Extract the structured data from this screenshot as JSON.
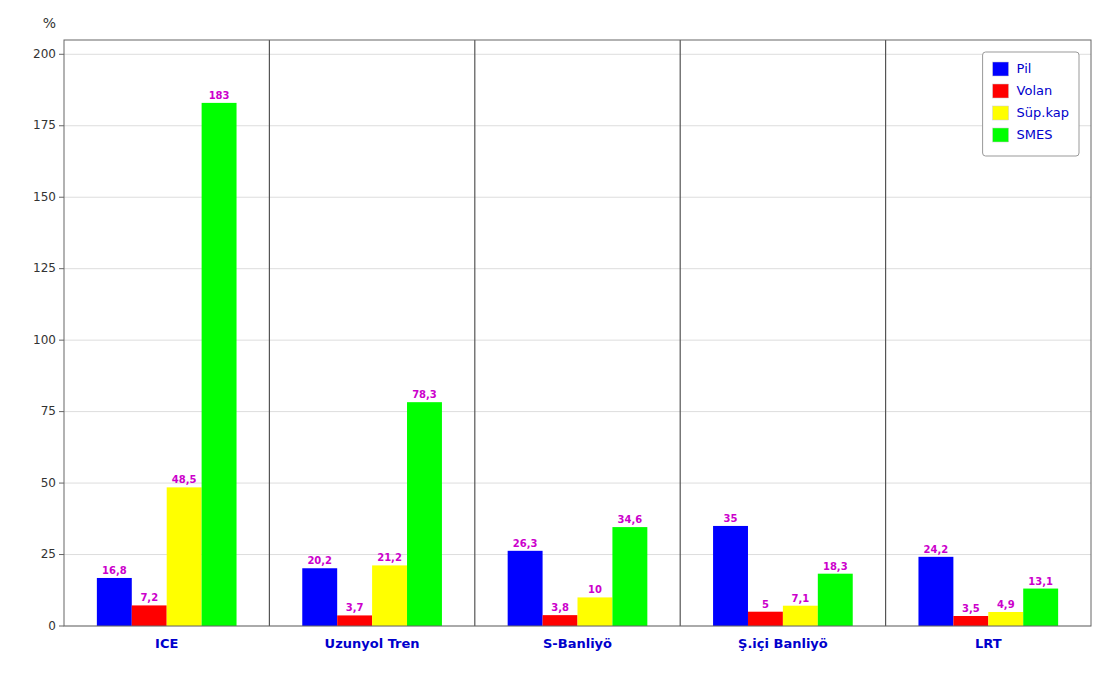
{
  "chart_data": {
    "type": "bar",
    "categories": [
      "ICE",
      "Uzunyol Tren",
      "S-Banliyö",
      "Ş.içi Banliyö",
      "LRT"
    ],
    "series": [
      {
        "name": "Pil",
        "color": "#0000FF",
        "values": [
          16.8,
          20.2,
          26.3,
          35,
          24.2
        ],
        "value_labels": [
          "16,8",
          "20,2",
          "26,3",
          "35",
          "24,2"
        ]
      },
      {
        "name": "Volan",
        "color": "#FF0000",
        "values": [
          7.2,
          3.7,
          3.8,
          5,
          3.5
        ],
        "value_labels": [
          "7,2",
          "3,7",
          "3,8",
          "5",
          "3,5"
        ]
      },
      {
        "name": "Süp.kap",
        "color": "#FFFF00",
        "values": [
          48.5,
          21.2,
          10,
          7.1,
          4.9
        ],
        "value_labels": [
          "48,5",
          "21,2",
          "10",
          "7,1",
          "4,9"
        ]
      },
      {
        "name": "SMES",
        "color": "#00FF00",
        "values": [
          183,
          78.3,
          34.6,
          18.3,
          13.1
        ],
        "value_labels": [
          "183",
          "78,3",
          "34,6",
          "18,3",
          "13,1"
        ]
      }
    ],
    "ylabel": "%",
    "ylim": [
      0,
      205
    ],
    "yticks": [
      0,
      25,
      50,
      75,
      100,
      125,
      150,
      175,
      200
    ],
    "grid": true,
    "legend": "upper right",
    "data_labels": true
  }
}
